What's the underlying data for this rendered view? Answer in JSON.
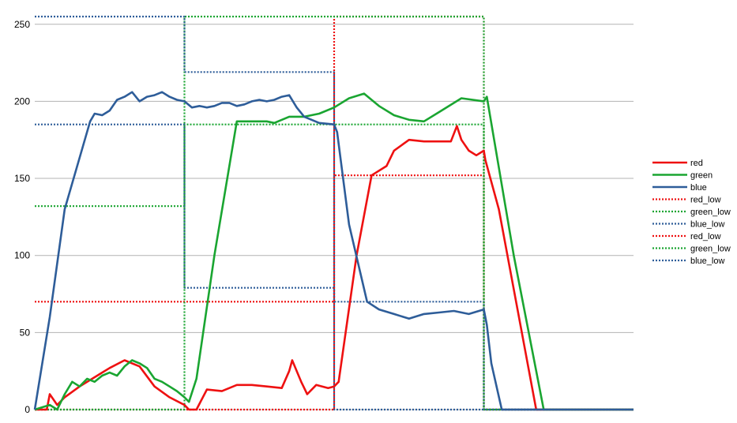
{
  "chart_data": {
    "type": "line",
    "title": "",
    "xlabel": "",
    "ylabel": "",
    "ylim": [
      0,
      255
    ],
    "xlim": [
      0,
      400
    ],
    "yticks": [
      "0",
      "50",
      "100",
      "150",
      "200",
      "250"
    ],
    "grid": "horizontal",
    "legend_position": "right",
    "series": [
      {
        "name": "red",
        "style": "solid",
        "color": "#ee1111",
        "points": [
          [
            0,
            0
          ],
          [
            8,
            0
          ],
          [
            10,
            10
          ],
          [
            15,
            3
          ],
          [
            20,
            8
          ],
          [
            30,
            15
          ],
          [
            40,
            21
          ],
          [
            50,
            27
          ],
          [
            60,
            32
          ],
          [
            70,
            28
          ],
          [
            80,
            15
          ],
          [
            90,
            8
          ],
          [
            100,
            3
          ],
          [
            103,
            0
          ],
          [
            108,
            0
          ],
          [
            115,
            13
          ],
          [
            125,
            12
          ],
          [
            135,
            16
          ],
          [
            145,
            16
          ],
          [
            155,
            15
          ],
          [
            165,
            14
          ],
          [
            170,
            25
          ],
          [
            172,
            32
          ],
          [
            178,
            18
          ],
          [
            182,
            10
          ],
          [
            188,
            16
          ],
          [
            196,
            14
          ],
          [
            200,
            15
          ],
          [
            203,
            18
          ],
          [
            215,
            100
          ],
          [
            225,
            152
          ],
          [
            235,
            158
          ],
          [
            240,
            168
          ],
          [
            250,
            175
          ],
          [
            260,
            174
          ],
          [
            270,
            174
          ],
          [
            278,
            174
          ],
          [
            282,
            184
          ],
          [
            285,
            175
          ],
          [
            290,
            168
          ],
          [
            295,
            165
          ],
          [
            300,
            168
          ],
          [
            301,
            162
          ],
          [
            310,
            130
          ],
          [
            335,
            0
          ],
          [
            400,
            0
          ]
        ]
      },
      {
        "name": "green",
        "style": "solid",
        "color": "#1aa531",
        "points": [
          [
            0,
            0
          ],
          [
            10,
            3
          ],
          [
            15,
            0
          ],
          [
            20,
            10
          ],
          [
            25,
            18
          ],
          [
            30,
            15
          ],
          [
            35,
            20
          ],
          [
            40,
            18
          ],
          [
            45,
            22
          ],
          [
            50,
            24
          ],
          [
            55,
            22
          ],
          [
            60,
            28
          ],
          [
            65,
            32
          ],
          [
            70,
            30
          ],
          [
            75,
            27
          ],
          [
            80,
            20
          ],
          [
            85,
            18
          ],
          [
            90,
            15
          ],
          [
            95,
            12
          ],
          [
            100,
            8
          ],
          [
            103,
            5
          ],
          [
            108,
            20
          ],
          [
            120,
            100
          ],
          [
            135,
            187
          ],
          [
            145,
            187
          ],
          [
            155,
            187
          ],
          [
            160,
            186
          ],
          [
            170,
            190
          ],
          [
            180,
            190
          ],
          [
            190,
            192
          ],
          [
            200,
            196
          ],
          [
            210,
            202
          ],
          [
            220,
            205
          ],
          [
            230,
            197
          ],
          [
            240,
            191
          ],
          [
            250,
            188
          ],
          [
            260,
            187
          ],
          [
            270,
            193
          ],
          [
            285,
            202
          ],
          [
            300,
            200
          ],
          [
            302,
            203
          ],
          [
            320,
            100
          ],
          [
            340,
            0
          ],
          [
            400,
            0
          ]
        ]
      },
      {
        "name": "blue",
        "style": "solid",
        "color": "#2e5d99",
        "points": [
          [
            0,
            0
          ],
          [
            10,
            60
          ],
          [
            20,
            130
          ],
          [
            37,
            187
          ],
          [
            40,
            192
          ],
          [
            45,
            191
          ],
          [
            50,
            194
          ],
          [
            55,
            201
          ],
          [
            60,
            203
          ],
          [
            65,
            206
          ],
          [
            70,
            200
          ],
          [
            75,
            203
          ],
          [
            80,
            204
          ],
          [
            85,
            206
          ],
          [
            90,
            203
          ],
          [
            95,
            201
          ],
          [
            100,
            200
          ],
          [
            105,
            196
          ],
          [
            110,
            197
          ],
          [
            115,
            196
          ],
          [
            120,
            197
          ],
          [
            125,
            199
          ],
          [
            130,
            199
          ],
          [
            135,
            197
          ],
          [
            140,
            198
          ],
          [
            145,
            200
          ],
          [
            150,
            201
          ],
          [
            155,
            200
          ],
          [
            160,
            201
          ],
          [
            165,
            203
          ],
          [
            170,
            204
          ],
          [
            175,
            196
          ],
          [
            180,
            190
          ],
          [
            190,
            186
          ],
          [
            200,
            185
          ],
          [
            202,
            180
          ],
          [
            210,
            120
          ],
          [
            222,
            70
          ],
          [
            230,
            65
          ],
          [
            240,
            62
          ],
          [
            250,
            59
          ],
          [
            260,
            62
          ],
          [
            270,
            63
          ],
          [
            280,
            64
          ],
          [
            290,
            62
          ],
          [
            300,
            65
          ],
          [
            302,
            55
          ],
          [
            305,
            30
          ],
          [
            312,
            0
          ],
          [
            400,
            0
          ]
        ]
      },
      {
        "name": "red_low",
        "style": "dotted",
        "color": "#ee1111",
        "points": [
          [
            0,
            70
          ],
          [
            100,
            70
          ],
          [
            200,
            70
          ],
          [
            200,
            152
          ],
          [
            300,
            152
          ],
          [
            300,
            0
          ],
          [
            400,
            0
          ]
        ]
      },
      {
        "name": "green_low",
        "style": "dotted",
        "color": "#1aa531",
        "points": [
          [
            0,
            132
          ],
          [
            100,
            132
          ],
          [
            100,
            185
          ],
          [
            200,
            185
          ],
          [
            300,
            185
          ],
          [
            300,
            0
          ],
          [
            400,
            0
          ]
        ]
      },
      {
        "name": "blue_low",
        "style": "dotted",
        "color": "#2e5d99",
        "points": [
          [
            0,
            185
          ],
          [
            100,
            185
          ],
          [
            100,
            79
          ],
          [
            200,
            79
          ],
          [
            200,
            70
          ],
          [
            300,
            70
          ],
          [
            300,
            0
          ],
          [
            400,
            0
          ]
        ]
      },
      {
        "name": "red_low",
        "style": "dotted",
        "color": "#ee1111",
        "points": [
          [
            0,
            0
          ],
          [
            100,
            0
          ],
          [
            200,
            0
          ],
          [
            200,
            255
          ],
          [
            300,
            255
          ],
          [
            300,
            0
          ],
          [
            400,
            0
          ]
        ]
      },
      {
        "name": "green_low",
        "style": "dotted",
        "color": "#1aa531",
        "points": [
          [
            0,
            0
          ],
          [
            100,
            0
          ],
          [
            100,
            255
          ],
          [
            200,
            255
          ],
          [
            300,
            255
          ],
          [
            300,
            0
          ],
          [
            400,
            0
          ]
        ]
      },
      {
        "name": "blue_low",
        "style": "dotted",
        "color": "#2e5d99",
        "points": [
          [
            0,
            255
          ],
          [
            100,
            255
          ],
          [
            100,
            219
          ],
          [
            200,
            219
          ],
          [
            200,
            0
          ],
          [
            300,
            0
          ],
          [
            300,
            0
          ],
          [
            400,
            0
          ]
        ]
      }
    ]
  }
}
